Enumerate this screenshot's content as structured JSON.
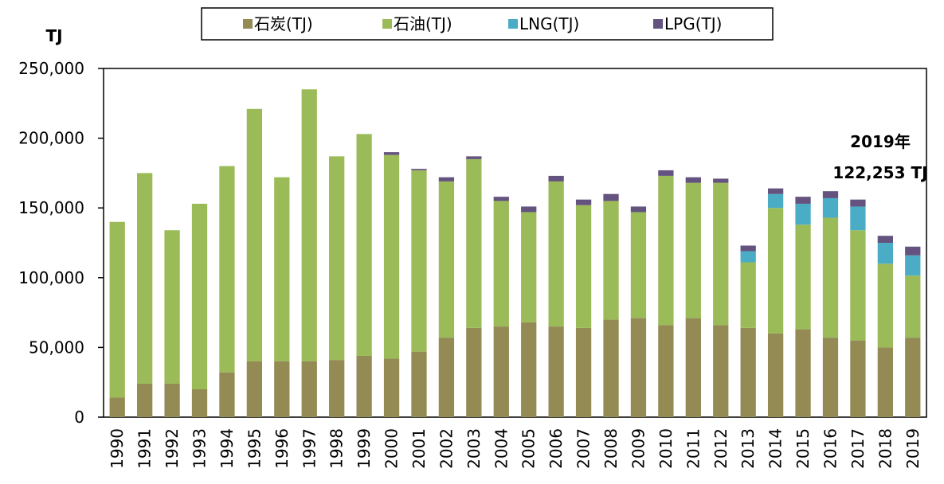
{
  "chart_data": {
    "type": "stacked_bar",
    "y_axis_label": "TJ",
    "annotation": [
      "2019年",
      "122,253 TJ"
    ],
    "categories": [
      "1990",
      "1991",
      "1992",
      "1993",
      "1994",
      "1995",
      "1996",
      "1997",
      "1998",
      "1999",
      "2000",
      "2001",
      "2002",
      "2003",
      "2004",
      "2005",
      "2006",
      "2007",
      "2008",
      "2009",
      "2010",
      "2011",
      "2012",
      "2013",
      "2014",
      "2015",
      "2016",
      "2017",
      "2018",
      "2019"
    ],
    "series": [
      {
        "name": "石炭(TJ)",
        "color": "#948a54",
        "values": [
          14000,
          24000,
          24000,
          20000,
          32000,
          40000,
          40000,
          40000,
          41000,
          44000,
          42000,
          47000,
          57000,
          64000,
          65000,
          68000,
          65000,
          64000,
          70000,
          71000,
          66000,
          71000,
          66000,
          64000,
          60000,
          63000,
          57000,
          55000,
          50000,
          57000
        ]
      },
      {
        "name": "石油(TJ)",
        "color": "#9bbb59",
        "values": [
          126000,
          151000,
          110000,
          133000,
          148000,
          181000,
          132000,
          195000,
          146000,
          159000,
          146000,
          130000,
          112000,
          121000,
          90000,
          79000,
          104000,
          88000,
          85000,
          76000,
          107000,
          97000,
          102000,
          47000,
          90000,
          75000,
          86000,
          79000,
          60000,
          44500
        ]
      },
      {
        "name": "LNG(TJ)",
        "color": "#4bacc6",
        "values": [
          null,
          null,
          null,
          null,
          null,
          null,
          null,
          null,
          null,
          null,
          null,
          null,
          null,
          null,
          null,
          null,
          null,
          null,
          null,
          null,
          null,
          null,
          null,
          8000,
          10000,
          15000,
          14000,
          17000,
          15000,
          14500
        ]
      },
      {
        "name": "LPG(TJ)",
        "color": "#64527f",
        "values": [
          null,
          null,
          null,
          null,
          null,
          null,
          null,
          null,
          null,
          null,
          2000,
          1000,
          3000,
          2000,
          3000,
          4000,
          4000,
          4000,
          5000,
          4000,
          4000,
          4000,
          3000,
          4000,
          4000,
          5000,
          5000,
          5000,
          5000,
          6253
        ]
      }
    ],
    "ylim": [
      0,
      250000
    ],
    "yticks": [
      0,
      {
        "value": 50000,
        "label": "50,000"
      },
      {
        "value": 100000,
        "label": "100,000"
      },
      {
        "value": 150000,
        "label": "150,000"
      },
      {
        "value": 200000,
        "label": "200,000"
      },
      {
        "value": 250000,
        "label": "250,000"
      }
    ],
    "legend": "top"
  }
}
